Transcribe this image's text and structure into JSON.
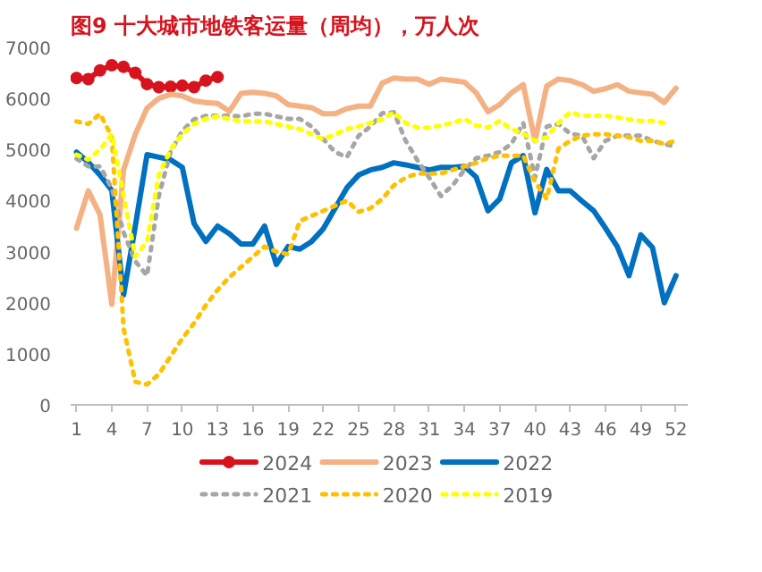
{
  "chart_data": {
    "type": "line",
    "title": "图9 十大城市地铁客运量（周均），万人次",
    "x": [
      1,
      2,
      3,
      4,
      5,
      6,
      7,
      8,
      9,
      10,
      11,
      12,
      13,
      14,
      15,
      16,
      17,
      18,
      19,
      20,
      21,
      22,
      23,
      24,
      25,
      26,
      27,
      28,
      29,
      30,
      31,
      32,
      33,
      34,
      35,
      36,
      37,
      38,
      39,
      40,
      41,
      42,
      43,
      44,
      45,
      46,
      47,
      48,
      49,
      50,
      51,
      52
    ],
    "xlim": [
      0.5,
      53
    ],
    "xticks": [
      1,
      4,
      7,
      10,
      13,
      16,
      19,
      22,
      25,
      28,
      31,
      34,
      37,
      40,
      43,
      46,
      49,
      52
    ],
    "ylim": [
      0,
      7000
    ],
    "yticks": [
      0,
      1000,
      2000,
      3000,
      4000,
      5000,
      6000,
      7000
    ],
    "grid": false,
    "legend": "bottom",
    "series": [
      {
        "name": "2024",
        "color": "#d7141e",
        "marker": "circle",
        "line_style": "solid",
        "values": [
          6400,
          6380,
          6550,
          6650,
          6620,
          6500,
          6280,
          6220,
          6230,
          6250,
          6220,
          6350,
          6420,
          null,
          null,
          null,
          null,
          null,
          null,
          null,
          null,
          null,
          null,
          null,
          null,
          null,
          null,
          null,
          null,
          null,
          null,
          null,
          null,
          null,
          null,
          null,
          null,
          null,
          null,
          null,
          null,
          null,
          null,
          null,
          null,
          null,
          null,
          null,
          null,
          null,
          null,
          null
        ]
      },
      {
        "name": "2023",
        "color": "#f4b183",
        "marker": "none",
        "line_style": "solid",
        "values": [
          3460,
          4190,
          3720,
          1970,
          4600,
          5300,
          5810,
          6000,
          6080,
          6050,
          5950,
          5920,
          5900,
          5750,
          6100,
          6120,
          6100,
          6050,
          5880,
          5850,
          5820,
          5700,
          5700,
          5800,
          5850,
          5850,
          6300,
          6400,
          6380,
          6380,
          6280,
          6380,
          6350,
          6320,
          6110,
          5740,
          5880,
          6110,
          6270,
          5170,
          6240,
          6380,
          6350,
          6270,
          6140,
          6190,
          6270,
          6140,
          6110,
          6080,
          5920,
          6200
        ]
      },
      {
        "name": "2022",
        "color": "#0070c0",
        "marker": "none",
        "line_style": "solid",
        "values": [
          4950,
          4750,
          4500,
          4200,
          2150,
          3500,
          4900,
          4850,
          4800,
          4650,
          3550,
          3200,
          3500,
          3350,
          3150,
          3150,
          3500,
          2750,
          3100,
          3050,
          3200,
          3450,
          3850,
          4250,
          4500,
          4600,
          4650,
          4740,
          4700,
          4650,
          4600,
          4650,
          4650,
          4670,
          4460,
          3800,
          4030,
          4740,
          4880,
          3760,
          4610,
          4190,
          4190,
          3990,
          3800,
          3460,
          3100,
          2530,
          3330,
          3080,
          2000,
          2530
        ]
      },
      {
        "name": "2021",
        "color": "#a6a6a6",
        "marker": "none",
        "line_style": "dotted",
        "values": [
          4820,
          4670,
          4670,
          4240,
          3380,
          2810,
          2530,
          4090,
          4950,
          5370,
          5590,
          5660,
          5660,
          5660,
          5650,
          5700,
          5700,
          5650,
          5600,
          5600,
          5450,
          5200,
          4950,
          4850,
          5270,
          5450,
          5710,
          5730,
          5170,
          4790,
          4450,
          4090,
          4300,
          4600,
          4830,
          4880,
          4950,
          5110,
          5520,
          4450,
          5450,
          5500,
          5310,
          5270,
          4830,
          5170,
          5270,
          5270,
          5270,
          5170,
          5110,
          5050
        ]
      },
      {
        "name": "2020",
        "color": "#ffc000",
        "marker": "none",
        "line_style": "dotted",
        "values": [
          5550,
          5500,
          5700,
          5250,
          1500,
          450,
          400,
          600,
          950,
          1300,
          1600,
          1950,
          2250,
          2500,
          2700,
          2900,
          3100,
          3000,
          2950,
          3600,
          3700,
          3800,
          3900,
          4000,
          3780,
          3850,
          4030,
          4300,
          4450,
          4530,
          4530,
          4530,
          4600,
          4670,
          4740,
          4830,
          4880,
          4880,
          4880,
          4370,
          4030,
          5020,
          5170,
          5270,
          5300,
          5300,
          5270,
          5240,
          5170,
          5170,
          5110,
          5170
        ]
      },
      {
        "name": "2019",
        "color": "#ffff00",
        "marker": "none",
        "line_style": "dotted",
        "values": [
          4900,
          4800,
          5000,
          5300,
          4100,
          2900,
          3200,
          4500,
          5000,
          5300,
          5500,
          5600,
          5650,
          5600,
          5550,
          5550,
          5550,
          5500,
          5450,
          5400,
          5300,
          5200,
          5300,
          5400,
          5450,
          5520,
          5590,
          5730,
          5520,
          5430,
          5430,
          5470,
          5520,
          5600,
          5470,
          5430,
          5560,
          5400,
          5310,
          5170,
          5240,
          5520,
          5730,
          5660,
          5660,
          5660,
          5630,
          5590,
          5560,
          5560,
          5520,
          null
        ]
      }
    ]
  }
}
